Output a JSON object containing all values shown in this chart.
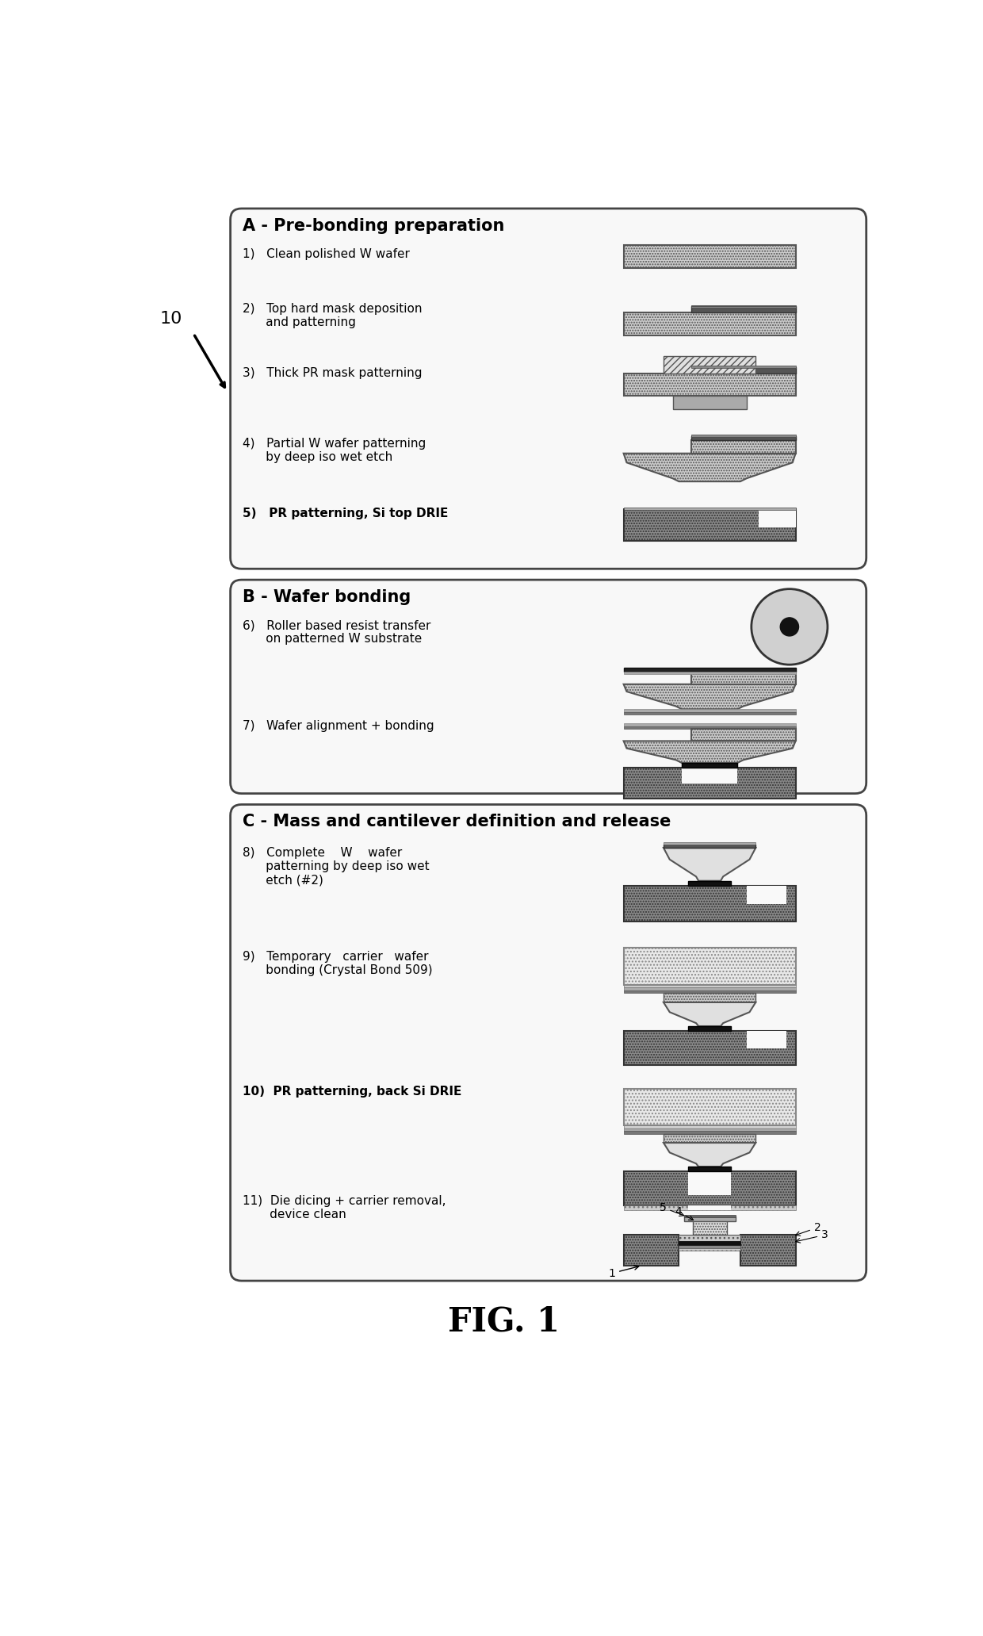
{
  "fig_label": "FIG. 1",
  "ref_number": "10",
  "bg": "#ffffff",
  "box_stroke": "#444444",
  "sec_A_title": "A - Pre-bonding preparation",
  "sec_B_title": "B - Wafer bonding",
  "sec_C_title": "C - Mass and cantilever definition and release",
  "steps": {
    "1": "1)   Clean polished W wafer",
    "2a": "2)   Top hard mask deposition",
    "2b": "      and patterning",
    "3": "3)   Thick PR mask patterning",
    "4a": "4)   Partial W wafer patterning",
    "4b": "      by deep iso wet etch",
    "5": "5)   PR patterning, Si top DRIE",
    "6a": "6)   Roller based resist transfer",
    "6b": "      on patterned W substrate",
    "7": "7)   Wafer alignment + bonding",
    "8a": "8)   Complete    W    wafer",
    "8b": "      patterning by deep iso wet",
    "8c": "      etch (#2)",
    "9a": "9)   Temporary   carrier   wafer",
    "9b": "      bonding (Crystal Bond 509)",
    "10": "10)  PR patterning, back Si DRIE",
    "11a": "11)  Die dicing + carrier removal,",
    "11b": "       device clean"
  },
  "colors": {
    "w_wafer_light": "#c8c8c8",
    "w_wafer_dot": "#d4d4d4",
    "si_dark": "#888888",
    "si_medium": "#aaaaaa",
    "hard_mask_dark": "#555555",
    "pr_hatch": "#e0e0e0",
    "bond_black": "#111111",
    "carrier_dot": "#e8e8e8",
    "roller_gray": "#cccccc",
    "white": "#ffffff",
    "black": "#000000"
  }
}
